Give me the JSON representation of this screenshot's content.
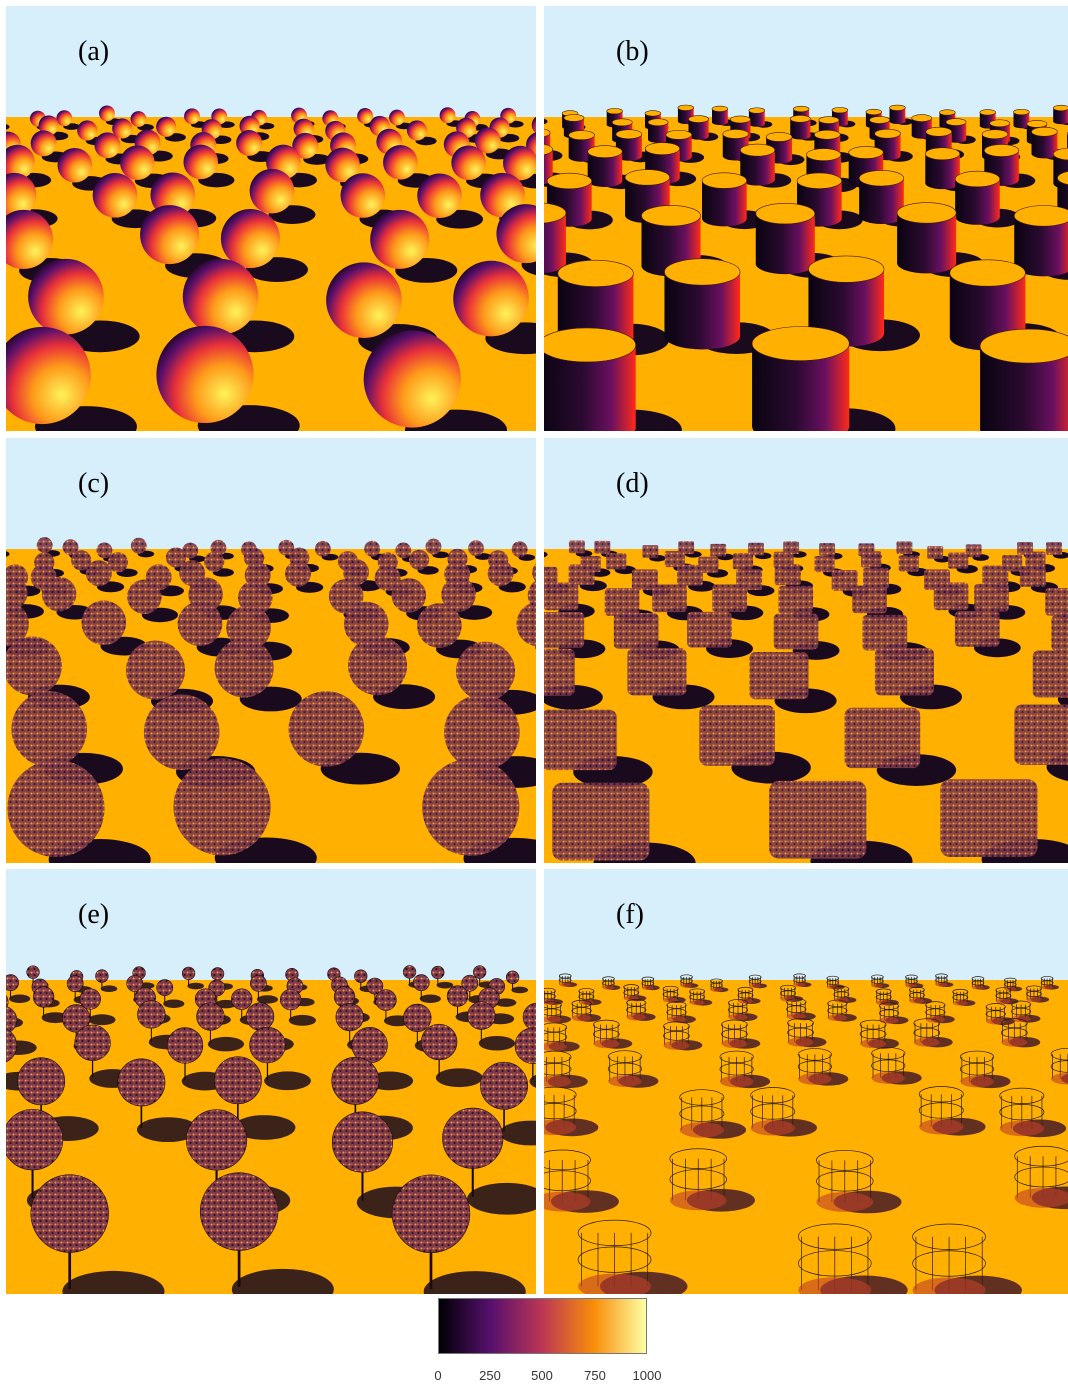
{
  "panels": [
    {
      "label": "(a)",
      "object": "sphere",
      "rendering": "solid"
    },
    {
      "label": "(b)",
      "object": "cylinder",
      "rendering": "solid"
    },
    {
      "label": "(c)",
      "object": "sphere",
      "rendering": "foliage"
    },
    {
      "label": "(d)",
      "object": "cylinder",
      "rendering": "foliage"
    },
    {
      "label": "(e)",
      "object": "tree",
      "rendering": "tree"
    },
    {
      "label": "(f)",
      "object": "cage",
      "rendering": "cage"
    }
  ],
  "colorbar": {
    "ticks": [
      "0",
      "250",
      "500",
      "750",
      "1000"
    ],
    "min": 0,
    "max": 1000,
    "colors": [
      "#000004",
      "#57106e",
      "#bc3754",
      "#f98e09",
      "#fcffa4"
    ]
  },
  "colors": {
    "sky": "#d6effa",
    "ground": "#ffb000",
    "shadow": "#1a0a1e"
  }
}
